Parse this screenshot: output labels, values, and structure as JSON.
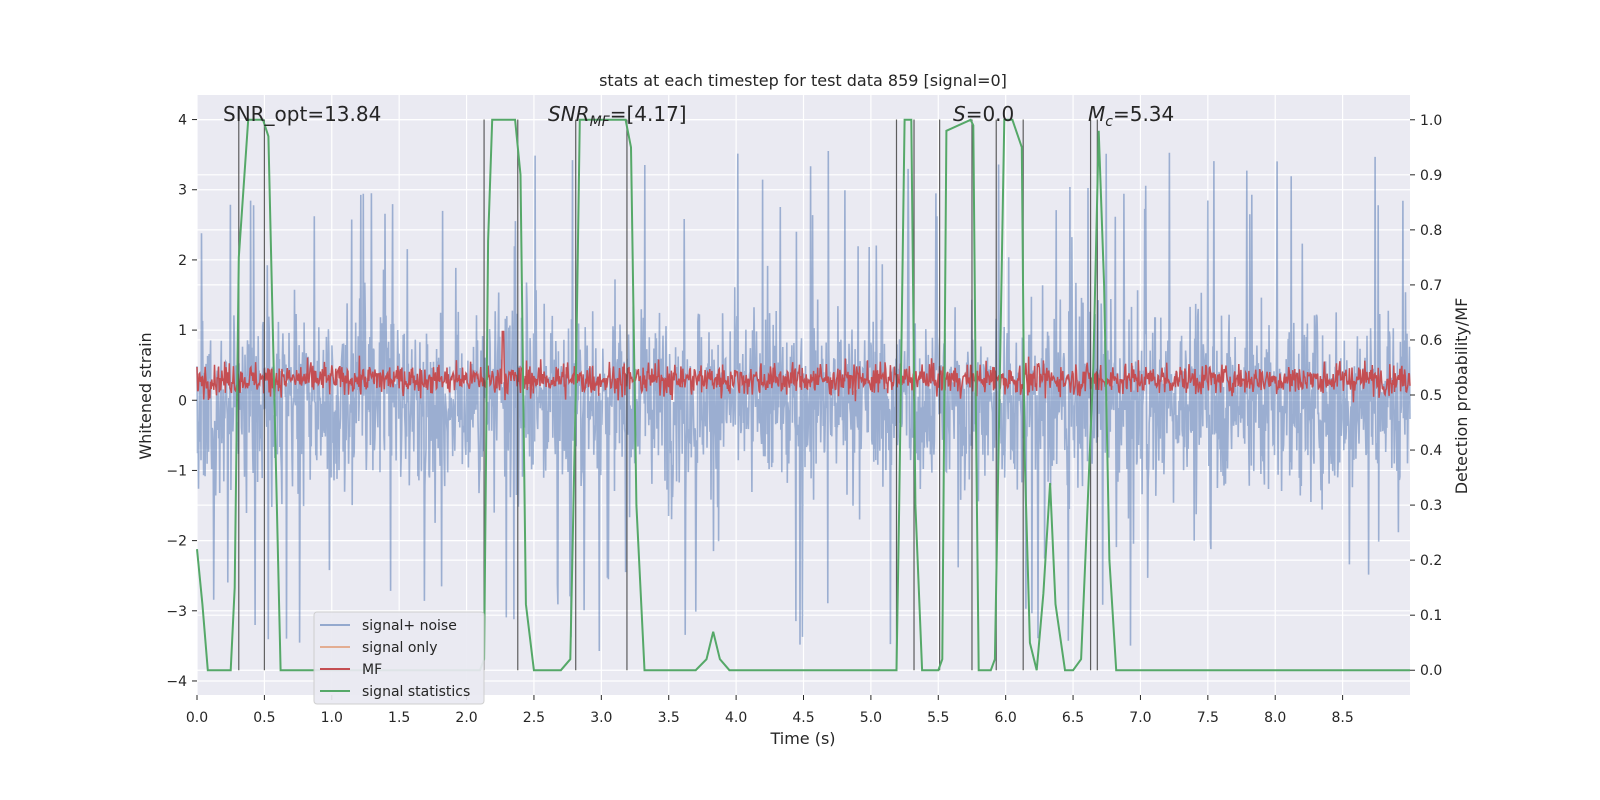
{
  "chart_data": {
    "type": "line",
    "title": "stats at each timestep for test data 859 [signal=0]",
    "xlabel": "Time (s)",
    "ylabel": "Whitened strain",
    "ylabel_right": "Detection probability/MF",
    "xlim": [
      0.0,
      9.0
    ],
    "ylim": [
      -4.2,
      4.35
    ],
    "ylim_right": [
      -0.045,
      1.045
    ],
    "x_ticks": [
      "0.0",
      "0.5",
      "1.0",
      "1.5",
      "2.0",
      "2.5",
      "3.0",
      "3.5",
      "4.0",
      "4.5",
      "5.0",
      "5.5",
      "6.0",
      "6.5",
      "7.0",
      "7.5",
      "8.0",
      "8.5"
    ],
    "y_ticks": [
      "−4",
      "−3",
      "−2",
      "−1",
      "0",
      "1",
      "2",
      "3",
      "4"
    ],
    "y_right_ticks": [
      "0.0",
      "0.1",
      "0.2",
      "0.3",
      "0.4",
      "0.5",
      "0.6",
      "0.7",
      "0.8",
      "0.9",
      "1.0"
    ],
    "grid": true,
    "legend_position": "lower-left",
    "annotations": [
      {
        "id": "snr-opt",
        "text": "SNR_opt=13.84",
        "x": 0.2
      },
      {
        "id": "snr-mf",
        "text": "SNR_MF=[4.17]",
        "x": 2.6
      },
      {
        "id": "s-value",
        "text": "S=0.0",
        "x": 5.6
      },
      {
        "id": "mc-value",
        "text": "M_c=5.34",
        "x": 6.6
      }
    ],
    "series": [
      {
        "name": "signal+ noise",
        "color": "#4c72b0",
        "alpha": 0.5,
        "amplitude_typical": 1.5,
        "amplitude_peak": 3.6
      },
      {
        "name": "signal only",
        "color": "#dd8452",
        "values": []
      },
      {
        "name": "MF",
        "color": "#c44e52",
        "baseline": 0.3,
        "spread": 0.45
      },
      {
        "name": "signal statistics",
        "color": "#55a868",
        "axis": "right",
        "x": [
          0.0,
          0.04,
          0.08,
          0.2,
          0.25,
          0.28,
          0.31,
          0.38,
          0.49,
          0.53,
          0.62,
          0.75,
          0.9,
          1.1,
          1.3,
          1.5,
          1.7,
          1.9,
          2.1,
          2.13,
          2.16,
          2.19,
          2.36,
          2.4,
          2.44,
          2.5,
          2.6,
          2.7,
          2.77,
          2.81,
          2.84,
          2.87,
          3.18,
          3.22,
          3.26,
          3.32,
          3.4,
          3.5,
          3.6,
          3.7,
          3.78,
          3.83,
          3.88,
          3.95,
          4.05,
          4.3,
          4.6,
          4.9,
          5.1,
          5.19,
          5.21,
          5.25,
          5.3,
          5.33,
          5.38,
          5.45,
          5.5,
          5.53,
          5.56,
          5.74,
          5.76,
          5.78,
          5.8,
          5.86,
          5.89,
          5.92,
          5.99,
          6.05,
          6.12,
          6.14,
          6.18,
          6.23,
          6.28,
          6.33,
          6.37,
          6.44,
          6.5,
          6.56,
          6.6,
          6.65,
          6.69,
          6.73,
          6.77,
          6.82,
          6.9,
          7.2,
          7.6,
          8.0,
          8.4,
          8.8,
          9.0
        ],
        "values": [
          0.22,
          0.12,
          0.0,
          0.0,
          0.0,
          0.15,
          0.75,
          1.0,
          1.0,
          0.97,
          0.0,
          0.0,
          0.0,
          0.0,
          0.0,
          0.0,
          0.0,
          0.0,
          0.0,
          0.02,
          0.78,
          1.0,
          1.0,
          0.9,
          0.12,
          0.0,
          0.0,
          0.0,
          0.02,
          0.5,
          1.0,
          1.0,
          1.0,
          0.95,
          0.3,
          0.0,
          0.0,
          0.0,
          0.0,
          0.0,
          0.02,
          0.07,
          0.02,
          0.0,
          0.0,
          0.0,
          0.0,
          0.0,
          0.0,
          0.0,
          0.3,
          1.0,
          1.0,
          0.3,
          0.0,
          0.0,
          0.0,
          0.02,
          0.98,
          1.0,
          0.99,
          0.45,
          0.0,
          0.0,
          0.0,
          0.02,
          1.0,
          1.0,
          0.95,
          0.4,
          0.05,
          0.0,
          0.14,
          0.34,
          0.12,
          0.0,
          0.0,
          0.02,
          0.25,
          0.55,
          0.98,
          0.7,
          0.2,
          0.0,
          0.0,
          0.0,
          0.0,
          0.0,
          0.0,
          0.0,
          0.0
        ]
      }
    ],
    "vertical_markers": [
      0.31,
      0.5,
      2.13,
      2.38,
      2.81,
      3.19,
      5.19,
      5.32,
      5.51,
      5.75,
      5.93,
      6.13,
      6.63,
      6.68
    ]
  }
}
